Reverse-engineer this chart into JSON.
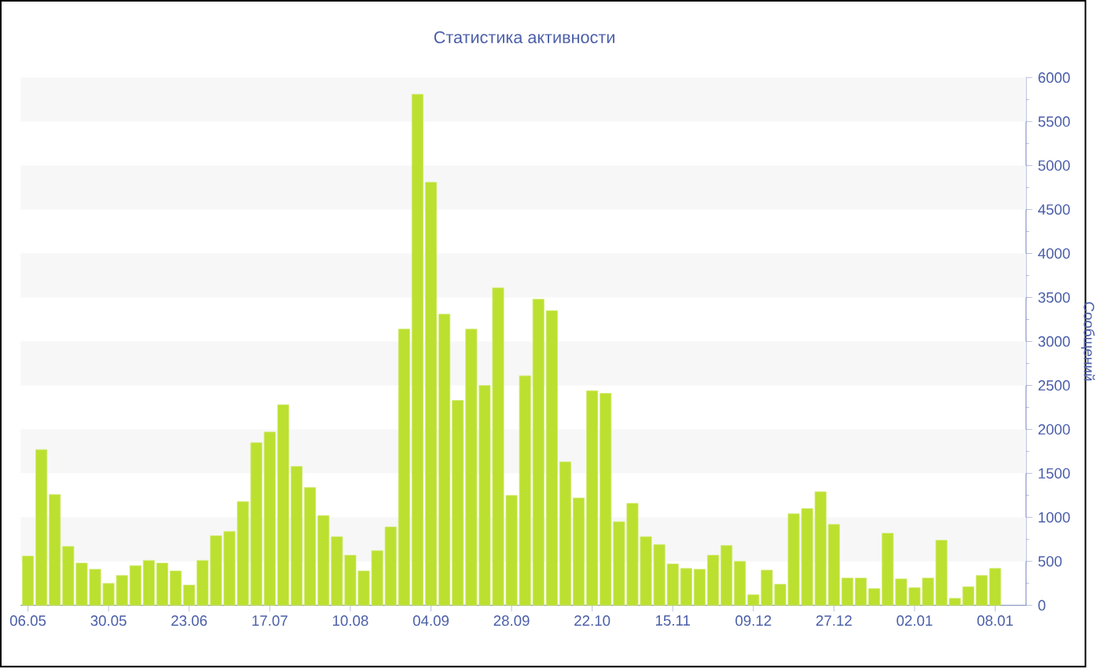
{
  "chart_data": {
    "type": "bar",
    "title": "Статистика активности",
    "ylabel": "Сообщений",
    "categories": [
      "06.05",
      null,
      null,
      null,
      null,
      null,
      "30.05",
      null,
      null,
      null,
      null,
      null,
      "23.06",
      null,
      null,
      null,
      null,
      null,
      "17.07",
      null,
      null,
      null,
      null,
      null,
      "10.08",
      null,
      null,
      null,
      null,
      null,
      "04.09",
      null,
      null,
      null,
      null,
      null,
      "28.09",
      null,
      null,
      null,
      null,
      null,
      "22.10",
      null,
      null,
      null,
      null,
      null,
      "15.11",
      null,
      null,
      null,
      null,
      null,
      "09.12",
      null,
      null,
      null,
      null,
      null,
      "27.12",
      null,
      null,
      null,
      null,
      null,
      "02.01",
      null,
      null,
      null,
      null,
      null,
      "08.01"
    ],
    "values": [
      560,
      1770,
      1260,
      670,
      480,
      410,
      250,
      340,
      450,
      510,
      480,
      390,
      230,
      510,
      790,
      840,
      1180,
      1850,
      1970,
      2280,
      1580,
      1340,
      1020,
      780,
      570,
      390,
      620,
      890,
      3140,
      5810,
      4810,
      3310,
      2330,
      3140,
      2500,
      3610,
      1250,
      2610,
      3480,
      3350,
      1630,
      1220,
      2440,
      2410,
      950,
      1160,
      780,
      690,
      470,
      420,
      410,
      570,
      680,
      500,
      120,
      400,
      240,
      1040,
      1100,
      1290,
      920,
      310,
      310,
      190,
      820,
      300,
      200,
      310,
      740,
      80,
      210,
      340,
      420
    ],
    "color": "#bce030",
    "ylim": [
      0,
      6000
    ],
    "yticks": [
      0,
      500,
      1000,
      1500,
      2000,
      2500,
      3000,
      3500,
      4000,
      4500,
      5000,
      5500,
      6000
    ],
    "bands": [
      {
        "axis": "y",
        "from": 500,
        "to": 1000,
        "color": "#f7f7f7"
      },
      {
        "axis": "y",
        "from": 1500,
        "to": 2000,
        "color": "#f7f7f7"
      },
      {
        "axis": "y",
        "from": 2500,
        "to": 3000,
        "color": "#f7f7f7"
      },
      {
        "axis": "y",
        "from": 3500,
        "to": 4000,
        "color": "#f7f7f7"
      },
      {
        "axis": "y",
        "from": 4500,
        "to": 5000,
        "color": "#f7f7f7"
      },
      {
        "axis": "y",
        "from": 5500,
        "to": 6000,
        "color": "#f7f7f7"
      }
    ]
  }
}
